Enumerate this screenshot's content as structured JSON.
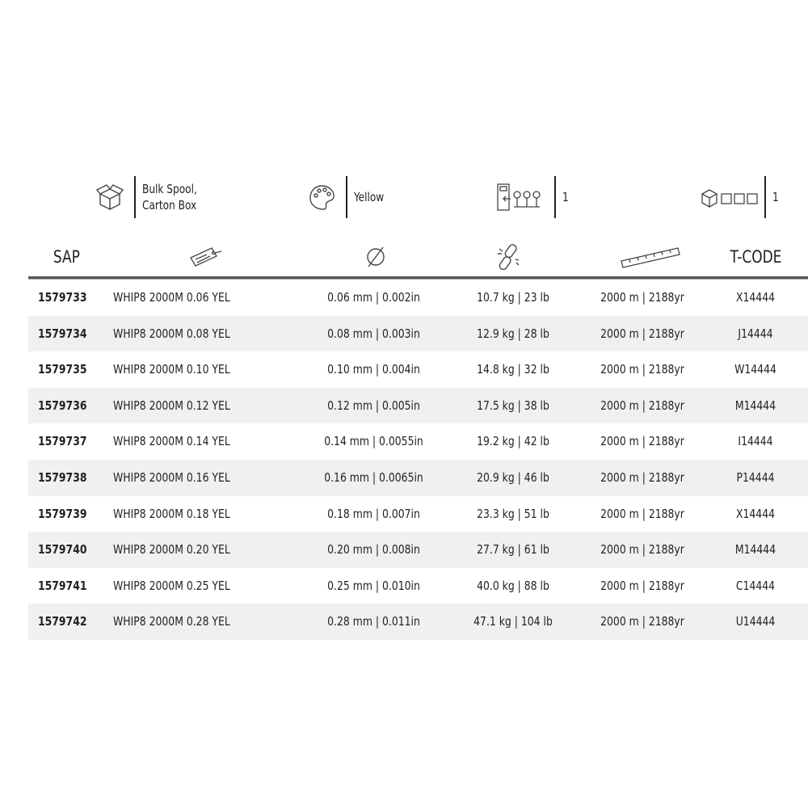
{
  "info": [
    {
      "icon": "open-box-icon",
      "text_lines": [
        "Bulk Spool,",
        "Carton Box"
      ]
    },
    {
      "icon": "color-palette-icon",
      "text_lines": [
        "Yellow"
      ]
    },
    {
      "icon": "display-stand-icon",
      "text_lines": [
        "1"
      ]
    },
    {
      "icon": "box-units-icon",
      "text_lines": [
        "1"
      ]
    }
  ],
  "headers": [
    {
      "label": "SAP"
    },
    {
      "icon": "price-tag-icon"
    },
    {
      "icon": "diameter-icon"
    },
    {
      "icon": "broken-chain-icon"
    },
    {
      "icon": "ruler-icon"
    },
    {
      "label": "T-CODE"
    }
  ],
  "rows": [
    [
      "1579733",
      "WHIP8 2000M 0.06 YEL",
      "0.06 mm | 0.002in",
      "10.7 kg | 23 lb",
      "2000 m | 2188yr",
      "X14444"
    ],
    [
      "1579734",
      "WHIP8 2000M 0.08 YEL",
      "0.08 mm | 0.003in",
      "12.9 kg | 28 lb",
      "2000 m | 2188yr",
      "J14444"
    ],
    [
      "1579735",
      "WHIP8 2000M 0.10 YEL",
      "0.10 mm | 0.004in",
      "14.8 kg | 32 lb",
      "2000 m | 2188yr",
      "W14444"
    ],
    [
      "1579736",
      "WHIP8 2000M 0.12 YEL",
      "0.12 mm | 0.005in",
      "17.5 kg | 38 lb",
      "2000 m | 2188yr",
      "M14444"
    ],
    [
      "1579737",
      "WHIP8 2000M 0.14 YEL",
      "0.14 mm | 0.0055in",
      "19.2 kg | 42 lb",
      "2000 m | 2188yr",
      "I14444"
    ],
    [
      "1579738",
      "WHIP8 2000M 0.16 YEL",
      "0.16 mm | 0.0065in",
      "20.9 kg | 46 lb",
      "2000 m | 2188yr",
      "P14444"
    ],
    [
      "1579739",
      "WHIP8 2000M 0.18 YEL",
      "0.18 mm | 0.007in",
      "23.3 kg | 51 lb",
      "2000 m | 2188yr",
      "X14444"
    ],
    [
      "1579740",
      "WHIP8 2000M 0.20 YEL",
      "0.20 mm | 0.008in",
      "27.7 kg | 61 lb",
      "2000 m | 2188yr",
      "M14444"
    ],
    [
      "1579741",
      "WHIP8 2000M 0.25 YEL",
      "0.25 mm | 0.010in",
      "40.0 kg | 88 lb",
      "2000 m | 2188yr",
      "C14444"
    ],
    [
      "1579742",
      "WHIP8 2000M 0.28 YEL",
      "0.28 mm | 0.011in",
      "47.1 kg | 104 lb",
      "2000 m | 2188yr",
      "U14444"
    ]
  ]
}
